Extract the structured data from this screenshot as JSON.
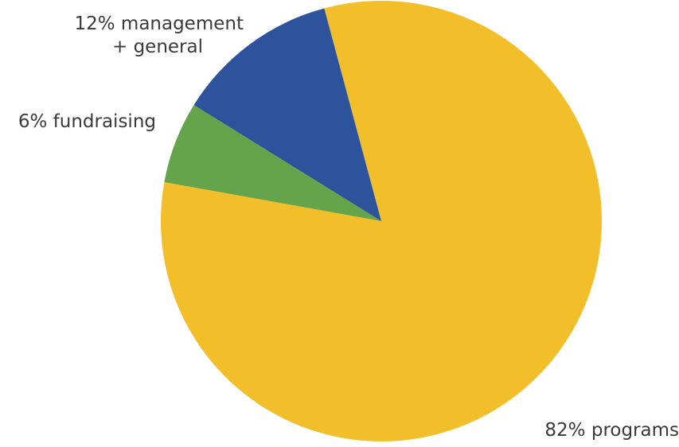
{
  "chart_data": {
    "type": "pie",
    "title": "",
    "slices": [
      {
        "label_lines": [
          "82% programs"
        ],
        "value": 82,
        "color": "#f2bf2b"
      },
      {
        "label_lines": [
          "6% fundraising"
        ],
        "value": 6,
        "color": "#64a44b"
      },
      {
        "label_lines": [
          "12% management",
          "+ general"
        ],
        "value": 12,
        "color": "#2d539c"
      }
    ],
    "legend": "none (labels placed beside slices)"
  }
}
